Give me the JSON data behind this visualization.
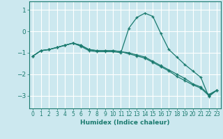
{
  "xlabel": "Humidex (Indice chaleur)",
  "ylabel": "",
  "background_color": "#cce8ef",
  "grid_color": "#ffffff",
  "line_color": "#1a7a6e",
  "xlim": [
    -0.5,
    23.5
  ],
  "ylim": [
    -3.6,
    1.4
  ],
  "yticks": [
    1,
    0,
    -1,
    -2,
    -3
  ],
  "xticks": [
    0,
    1,
    2,
    3,
    4,
    5,
    6,
    7,
    8,
    9,
    10,
    11,
    12,
    13,
    14,
    15,
    16,
    17,
    18,
    19,
    20,
    21,
    22,
    23
  ],
  "series": [
    {
      "x": [
        0,
        1,
        2,
        3,
        4,
        5,
        6,
        7,
        8,
        9,
        10,
        11,
        12,
        13,
        14,
        15,
        16,
        17,
        18,
        19,
        20,
        21,
        22,
        23
      ],
      "y": [
        -1.15,
        -0.9,
        -0.85,
        -0.75,
        -0.65,
        -0.55,
        -0.7,
        -0.9,
        -0.95,
        -0.95,
        -0.95,
        -1.0,
        0.15,
        0.65,
        0.85,
        0.7,
        -0.1,
        -0.85,
        -1.2,
        -1.55,
        -1.85,
        -2.15,
        -3.05,
        -2.75
      ]
    },
    {
      "x": [
        0,
        1,
        2,
        3,
        4,
        5,
        6,
        7,
        8,
        9,
        10,
        11,
        12,
        13,
        14,
        15,
        16,
        17,
        18,
        19,
        20,
        21,
        22,
        23
      ],
      "y": [
        -1.15,
        -0.9,
        -0.85,
        -0.75,
        -0.65,
        -0.55,
        -0.65,
        -0.85,
        -0.9,
        -0.9,
        -0.9,
        -0.95,
        -1.0,
        -1.1,
        -1.2,
        -1.4,
        -1.6,
        -1.8,
        -2.0,
        -2.2,
        -2.45,
        -2.6,
        -2.95,
        -2.75
      ]
    },
    {
      "x": [
        0,
        1,
        2,
        3,
        4,
        5,
        6,
        7,
        8,
        9,
        10,
        11,
        12,
        13,
        14,
        15,
        16,
        17,
        18,
        19,
        20,
        21,
        22,
        23
      ],
      "y": [
        -1.15,
        -0.9,
        -0.85,
        -0.75,
        -0.65,
        -0.55,
        -0.65,
        -0.85,
        -0.9,
        -0.9,
        -0.9,
        -0.95,
        -1.05,
        -1.15,
        -1.25,
        -1.45,
        -1.65,
        -1.85,
        -2.1,
        -2.3,
        -2.5,
        -2.65,
        -3.0,
        -2.75
      ]
    }
  ]
}
